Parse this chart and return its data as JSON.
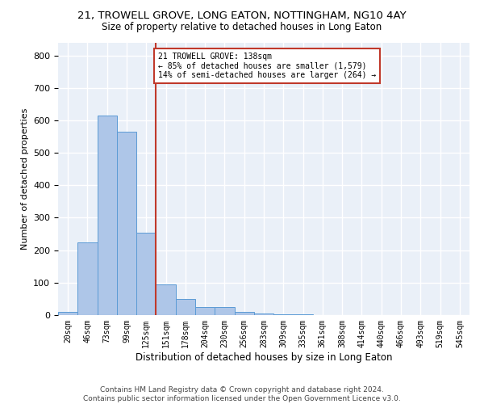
{
  "title1": "21, TROWELL GROVE, LONG EATON, NOTTINGHAM, NG10 4AY",
  "title2": "Size of property relative to detached houses in Long Eaton",
  "xlabel": "Distribution of detached houses by size in Long Eaton",
  "ylabel": "Number of detached properties",
  "footnote1": "Contains HM Land Registry data © Crown copyright and database right 2024.",
  "footnote2": "Contains public sector information licensed under the Open Government Licence v3.0.",
  "bin_labels": [
    "20sqm",
    "46sqm",
    "73sqm",
    "99sqm",
    "125sqm",
    "151sqm",
    "178sqm",
    "204sqm",
    "230sqm",
    "256sqm",
    "283sqm",
    "309sqm",
    "335sqm",
    "361sqm",
    "388sqm",
    "414sqm",
    "440sqm",
    "466sqm",
    "493sqm",
    "519sqm",
    "545sqm"
  ],
  "bar_values": [
    10,
    225,
    615,
    565,
    255,
    95,
    50,
    25,
    25,
    10,
    5,
    2,
    2,
    0,
    0,
    0,
    0,
    0,
    0,
    0,
    0
  ],
  "bar_color": "#aec6e8",
  "bar_edge_color": "#5b9bd5",
  "bg_color": "#eaf0f8",
  "grid_color": "#ffffff",
  "vline_x_bin": 5,
  "vline_color": "#c0392b",
  "annotation_text_line1": "21 TROWELL GROVE: 138sqm",
  "annotation_text_line2": "← 85% of detached houses are smaller (1,579)",
  "annotation_text_line3": "14% of semi-detached houses are larger (264) →",
  "annotation_box_color": "#c0392b",
  "ylim": [
    0,
    840
  ],
  "yticks": [
    0,
    100,
    200,
    300,
    400,
    500,
    600,
    700,
    800
  ],
  "title1_fontsize": 9.5,
  "title2_fontsize": 8.5,
  "xlabel_fontsize": 8.5,
  "ylabel_fontsize": 8,
  "tick_fontsize": 7,
  "footnote_fontsize": 6.5
}
